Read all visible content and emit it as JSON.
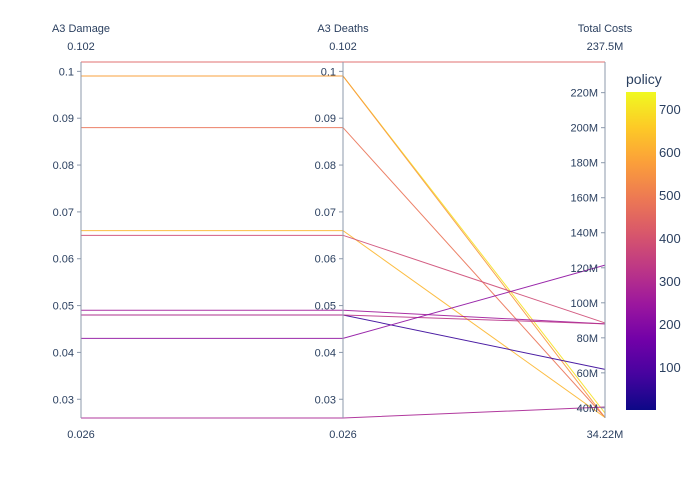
{
  "chart_data": {
    "type": "parcoords",
    "dimensions": [
      {
        "label": "A3 Damage",
        "range": [
          0.026,
          0.102
        ],
        "range_min_label": "0.026",
        "range_max_label": "0.102",
        "tick_values": [
          0.03,
          0.04,
          0.05,
          0.06,
          0.07,
          0.08,
          0.09,
          0.1
        ],
        "tick_labels": [
          "0.03",
          "0.04",
          "0.05",
          "0.06",
          "0.07",
          "0.08",
          "0.09",
          "0.1"
        ]
      },
      {
        "label": "A3 Deaths",
        "range": [
          0.026,
          0.102
        ],
        "range_min_label": "0.026",
        "range_max_label": "0.102",
        "tick_values": [
          0.03,
          0.04,
          0.05,
          0.06,
          0.07,
          0.08,
          0.09,
          0.1
        ],
        "tick_labels": [
          "0.03",
          "0.04",
          "0.05",
          "0.06",
          "0.07",
          "0.08",
          "0.09",
          "0.1"
        ]
      },
      {
        "label": "Total Costs",
        "range": [
          34.22,
          237.5
        ],
        "range_min_label": "34.22M",
        "range_max_label": "237.5M",
        "tick_values": [
          40,
          60,
          80,
          100,
          120,
          140,
          160,
          180,
          200,
          220
        ],
        "tick_labels": [
          "40M",
          "60M",
          "80M",
          "100M",
          "120M",
          "140M",
          "160M",
          "180M",
          "200M",
          "220M"
        ]
      }
    ],
    "lines": [
      {
        "policy": 700,
        "values": [
          0.099,
          0.099,
          37
        ]
      },
      {
        "policy": 560,
        "values": [
          0.099,
          0.099,
          34.5
        ]
      },
      {
        "policy": 480,
        "values": [
          0.088,
          0.088,
          34.5
        ]
      },
      {
        "policy": 440,
        "values": [
          0.102,
          0.102,
          237.5
        ]
      },
      {
        "policy": 620,
        "values": [
          0.066,
          0.066,
          34.5
        ]
      },
      {
        "policy": 380,
        "values": [
          0.065,
          0.065,
          88.5
        ]
      },
      {
        "policy": 260,
        "values": [
          0.049,
          0.049,
          88
        ]
      },
      {
        "policy": 60,
        "values": [
          0.048,
          0.048,
          62
        ]
      },
      {
        "policy": 320,
        "values": [
          0.048,
          0.048,
          88
        ]
      },
      {
        "policy": 220,
        "values": [
          0.043,
          0.043,
          121.5
        ]
      },
      {
        "policy": 280,
        "values": [
          0.026,
          0.026,
          40.5
        ]
      }
    ],
    "colorbar": {
      "title": "policy",
      "range": [
        0,
        740
      ],
      "tick_values": [
        100,
        200,
        300,
        400,
        500,
        600,
        700
      ],
      "tick_labels": [
        "100",
        "200",
        "300",
        "400",
        "500",
        "600",
        "700"
      ],
      "colorscale": [
        "#0d0887",
        "#46039f",
        "#7201a8",
        "#9c179e",
        "#bd3786",
        "#d8576b",
        "#ed7953",
        "#fb9f3a",
        "#fdca26",
        "#f0f921"
      ]
    }
  }
}
